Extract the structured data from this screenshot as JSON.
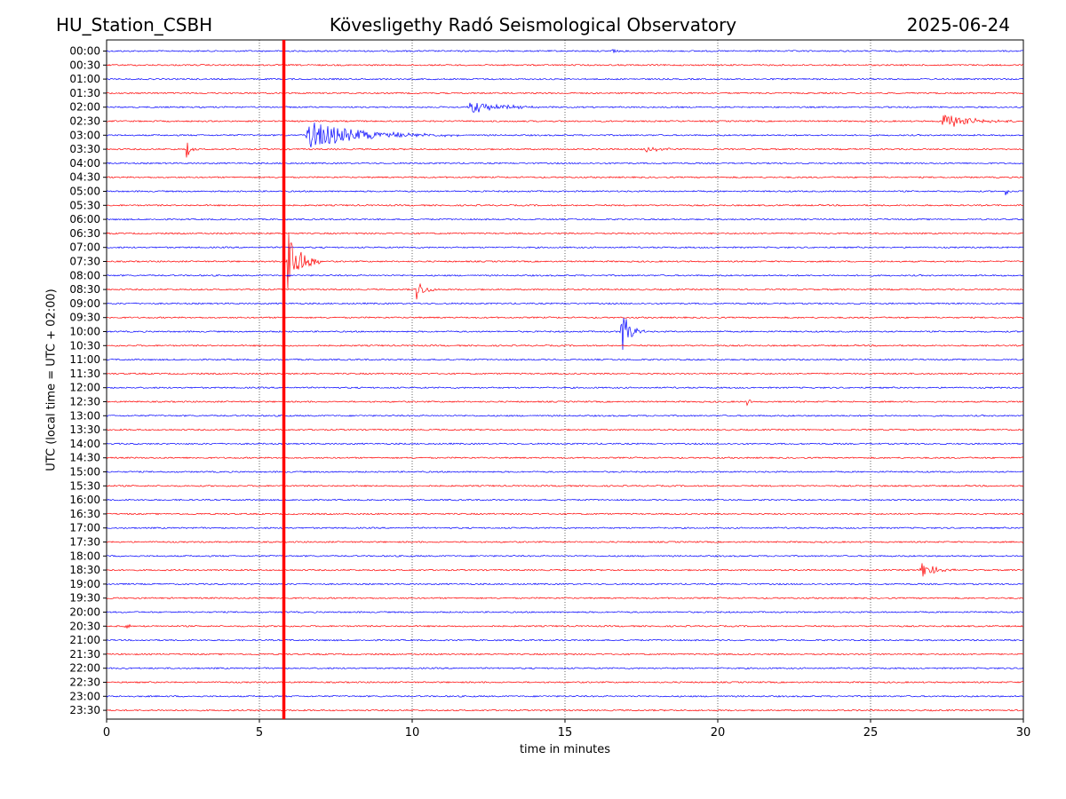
{
  "header": {
    "station": "HU_Station_CSBH",
    "observatory": "Kövesligethy Radó Seismological Observatory",
    "date": "2025-06-24"
  },
  "chart_data": {
    "type": "line",
    "title": "Kövesligethy Radó Seismological Observatory",
    "xlabel": "time in minutes",
    "ylabel": "UTC (local time = UTC + 02:00)",
    "xlim": [
      0,
      30
    ],
    "xticks": [
      0,
      5,
      10,
      15,
      20,
      25,
      30
    ],
    "grid": "vertical dotted lines at x ticks",
    "trace_colors": [
      "#0000ff",
      "#ff0000"
    ],
    "rows": [
      "00:00",
      "00:30",
      "01:00",
      "01:30",
      "02:00",
      "02:30",
      "03:00",
      "03:30",
      "04:00",
      "04:30",
      "05:00",
      "05:30",
      "06:00",
      "06:30",
      "07:00",
      "07:30",
      "08:00",
      "08:30",
      "09:00",
      "09:30",
      "10:00",
      "10:30",
      "11:00",
      "11:30",
      "12:00",
      "12:30",
      "13:00",
      "13:30",
      "14:00",
      "14:30",
      "15:00",
      "15:30",
      "16:00",
      "16:30",
      "17:00",
      "17:30",
      "18:00",
      "18:30",
      "19:00",
      "19:30",
      "20:00",
      "20:30",
      "21:00",
      "21:30",
      "22:00",
      "22:30",
      "23:00",
      "23:30"
    ],
    "marker": {
      "x": 5.8,
      "color": "#ff0000"
    },
    "events": [
      {
        "row": "00:00",
        "start": 16.5,
        "duration": 0.3,
        "amp": 0.4
      },
      {
        "row": "02:00",
        "start": 11.8,
        "duration": 3.0,
        "amp": 0.5
      },
      {
        "row": "02:30",
        "start": 27.3,
        "duration": 2.7,
        "amp": 0.6
      },
      {
        "row": "03:00",
        "start": 6.5,
        "duration": 5.0,
        "amp": 1.1
      },
      {
        "row": "03:30",
        "start": 2.6,
        "duration": 0.4,
        "amp": 0.7
      },
      {
        "row": "03:30",
        "start": 17.5,
        "duration": 2.0,
        "amp": 0.2
      },
      {
        "row": "05:00",
        "start": 29.4,
        "duration": 0.3,
        "amp": 0.35
      },
      {
        "row": "07:30",
        "start": 5.8,
        "duration": 1.2,
        "amp": 3.5
      },
      {
        "row": "08:30",
        "start": 10.1,
        "duration": 0.8,
        "amp": 0.9
      },
      {
        "row": "10:00",
        "start": 16.8,
        "duration": 0.8,
        "amp": 2.0
      },
      {
        "row": "12:30",
        "start": 20.9,
        "duration": 0.3,
        "amp": 0.6
      },
      {
        "row": "18:30",
        "start": 26.6,
        "duration": 1.2,
        "amp": 0.8
      },
      {
        "row": "20:30",
        "start": 0.6,
        "duration": 0.7,
        "amp": 0.2
      }
    ]
  }
}
